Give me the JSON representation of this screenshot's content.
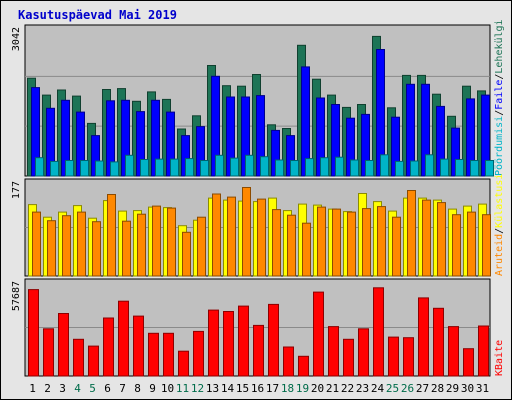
{
  "title": "Kasutuspäevad Mai 2019",
  "colors": {
    "background": "#e5e5e5",
    "panel": "#c0c0c0",
    "grid": "#8a8a8a",
    "weekday_label": "#000000",
    "weekend_label": "#006c4a",
    "pages": "#1d7456",
    "files": "#0000ff",
    "hits": "#00b4c8",
    "visits": "#ffff00",
    "sites": "#ff8800",
    "kbytes": "#ff0000"
  },
  "legend": {
    "top": {
      "pages": "Lehekülgi",
      "files": "Faile",
      "hits": "Pöördumisi"
    },
    "sep": "/",
    "middle": {
      "visits": "Külastusi",
      "sites": "Aruteid"
    },
    "bottom": {
      "kbytes": "KBaite"
    }
  },
  "chart_data": [
    {
      "type": "bar",
      "panel": "top",
      "ylabel_max": "3042",
      "ylim": [
        0,
        3042
      ],
      "categories": [
        "1",
        "2",
        "3",
        "4",
        "5",
        "6",
        "7",
        "8",
        "9",
        "10",
        "11",
        "12",
        "13",
        "14",
        "15",
        "16",
        "17",
        "18",
        "19",
        "20",
        "21",
        "22",
        "23",
        "24",
        "25",
        "26",
        "27",
        "28",
        "29",
        "30",
        "31"
      ],
      "weekend": [
        4,
        5,
        11,
        12,
        18,
        19,
        25,
        26
      ],
      "series": [
        {
          "name": "Lehekülgi",
          "values": [
            2080,
            1720,
            1830,
            1700,
            1120,
            1840,
            1860,
            1590,
            1790,
            1630,
            1000,
            1280,
            2350,
            1920,
            1910,
            2160,
            1090,
            1010,
            2780,
            2060,
            1720,
            1460,
            1520,
            2970,
            1450,
            2140,
            2140,
            1740,
            1270,
            1910,
            1810
          ]
        },
        {
          "name": "Faile",
          "values": [
            1880,
            1440,
            1610,
            1360,
            860,
            1600,
            1610,
            1370,
            1610,
            1360,
            860,
            1050,
            2120,
            1680,
            1680,
            1710,
            970,
            860,
            2320,
            1660,
            1520,
            1230,
            1310,
            2690,
            1250,
            1950,
            1950,
            1480,
            1020,
            1640,
            1720
          ]
        },
        {
          "name": "Pöördumisi",
          "values": [
            390,
            310,
            330,
            330,
            320,
            300,
            440,
            350,
            360,
            360,
            370,
            330,
            440,
            380,
            440,
            410,
            340,
            330,
            370,
            390,
            400,
            340,
            330,
            450,
            310,
            320,
            450,
            360,
            350,
            330,
            330
          ]
        }
      ]
    },
    {
      "type": "bar",
      "panel": "middle",
      "ylabel_max": "177",
      "ylim": [
        0,
        177
      ],
      "categories": [
        "1",
        "2",
        "3",
        "4",
        "5",
        "6",
        "7",
        "8",
        "9",
        "10",
        "11",
        "12",
        "13",
        "14",
        "15",
        "16",
        "17",
        "18",
        "19",
        "20",
        "21",
        "22",
        "23",
        "24",
        "25",
        "26",
        "27",
        "28",
        "29",
        "30",
        "31"
      ],
      "series": [
        {
          "name": "Külastusi",
          "values": [
            142,
            117,
            127,
            140,
            115,
            150,
            129,
            130,
            137,
            136,
            100,
            111,
            155,
            151,
            149,
            148,
            155,
            130,
            143,
            141,
            133,
            128,
            164,
            148,
            129,
            155,
            155,
            151,
            133,
            139,
            143
          ]
        },
        {
          "name": "Aruteid",
          "values": [
            127,
            110,
            120,
            127,
            108,
            162,
            109,
            123,
            139,
            135,
            87,
            117,
            163,
            157,
            176,
            153,
            132,
            121,
            105,
            137,
            133,
            127,
            134,
            138,
            117,
            170,
            151,
            146,
            122,
            127,
            122
          ]
        }
      ]
    },
    {
      "type": "bar",
      "panel": "bottom",
      "ylabel_max": "57687",
      "ylim": [
        0,
        57687
      ],
      "categories": [
        "1",
        "2",
        "3",
        "4",
        "5",
        "6",
        "7",
        "8",
        "9",
        "10",
        "11",
        "12",
        "13",
        "14",
        "15",
        "16",
        "17",
        "18",
        "19",
        "20",
        "21",
        "22",
        "23",
        "24",
        "25",
        "26",
        "27",
        "28",
        "29",
        "30",
        "31"
      ],
      "series": [
        {
          "name": "KBaite",
          "values": [
            56000,
            30600,
            40500,
            23800,
            19400,
            37600,
            48500,
            38800,
            27700,
            27700,
            16100,
            28900,
            42700,
            41800,
            45300,
            32800,
            46400,
            18800,
            12800,
            54400,
            32000,
            23800,
            30600,
            57200,
            25200,
            24800,
            50600,
            43900,
            32000,
            17700,
            32400
          ]
        }
      ]
    }
  ]
}
